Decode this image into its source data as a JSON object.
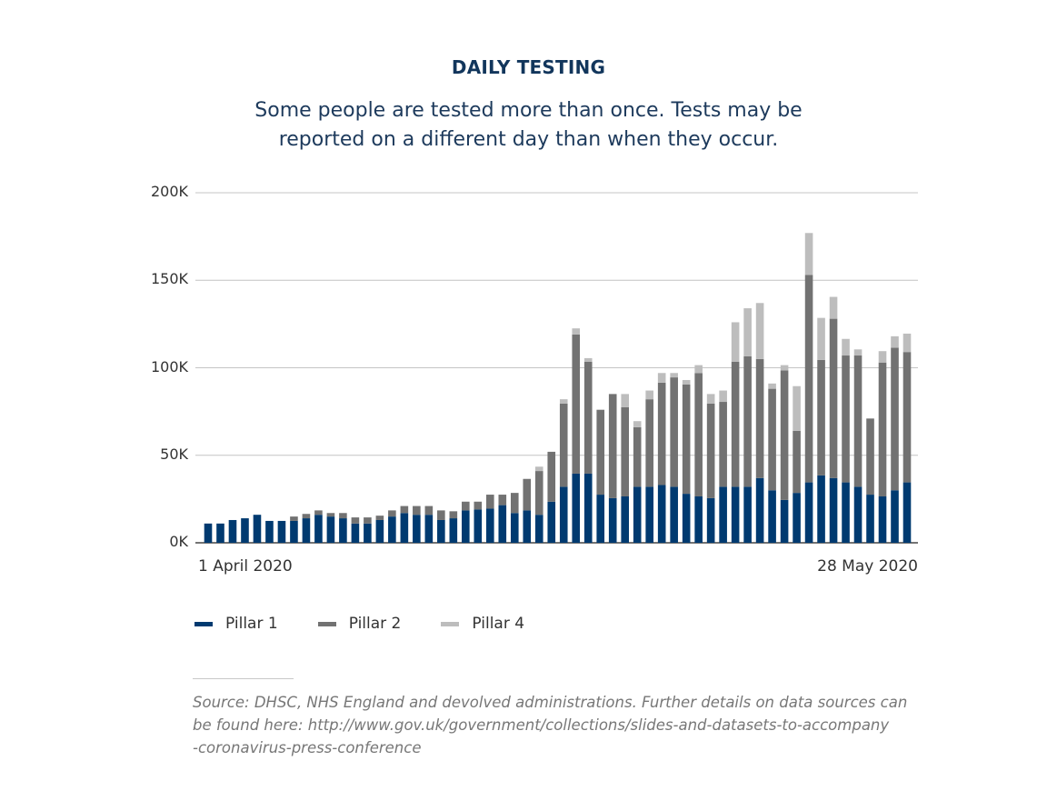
{
  "chart_data": {
    "type": "bar",
    "stacked": true,
    "title": "DAILY TESTING",
    "subtitle_lines": [
      "Some people are tested more than once. Tests may be",
      "reported on a different day than when they occur."
    ],
    "x_first_label": "1 April 2020",
    "x_last_label": "28 May 2020",
    "ylim": [
      0,
      200000
    ],
    "yticks": [
      0,
      50000,
      100000,
      150000,
      200000
    ],
    "ytick_labels": [
      "0K",
      "50K",
      "100K",
      "150K",
      "200K"
    ],
    "grid": true,
    "legend_position": "bottom-left",
    "categories_start": "1 April 2020",
    "categories_end": "28 May 2020",
    "series": [
      {
        "name": "Pillar 1",
        "color": "#003a70",
        "values": [
          11000,
          11000,
          13000,
          14000,
          16000,
          12500,
          12500,
          12500,
          14000,
          16000,
          15000,
          14000,
          11000,
          11000,
          13000,
          15000,
          17000,
          16000,
          16000,
          13000,
          14000,
          18500,
          19000,
          19500,
          21500,
          17000,
          18500,
          16000,
          23500,
          32000,
          39500,
          39500,
          27500,
          25500,
          26500,
          32000,
          32000,
          33000,
          32000,
          28000,
          26500,
          25500,
          32000,
          32000,
          32000,
          37000,
          30000,
          24500,
          28500,
          34500,
          38500,
          37000,
          34500,
          32000,
          27500,
          26500,
          30000,
          34500
        ]
      },
      {
        "name": "Pillar 2",
        "color": "#727272",
        "values": [
          0,
          0,
          0,
          0,
          0,
          0,
          0,
          2500,
          2500,
          2500,
          2000,
          3000,
          3500,
          3500,
          2500,
          3500,
          4000,
          5000,
          5000,
          5500,
          4000,
          5000,
          4500,
          8000,
          6000,
          11500,
          18000,
          25000,
          28500,
          47500,
          79500,
          64000,
          48500,
          59500,
          51000,
          34000,
          50000,
          58500,
          62500,
          62500,
          70500,
          54000,
          48500,
          71500,
          74500,
          68000,
          58000,
          74000,
          35500,
          118500,
          66000,
          91000,
          72500,
          75000,
          43500,
          76500,
          81500,
          74500
        ]
      },
      {
        "name": "Pillar 4",
        "color": "#bdbdbd",
        "values": [
          0,
          0,
          0,
          0,
          0,
          0,
          0,
          0,
          0,
          0,
          0,
          0,
          0,
          0,
          0,
          0,
          0,
          0,
          0,
          0,
          0,
          0,
          0,
          0,
          0,
          0,
          0,
          2500,
          0,
          2500,
          3500,
          2000,
          0,
          0,
          7500,
          3500,
          5000,
          5500,
          2500,
          2500,
          4500,
          5500,
          6500,
          22500,
          27500,
          32000,
          3000,
          3000,
          25500,
          24000,
          24000,
          12500,
          9500,
          3500,
          0,
          6500,
          6500,
          10500
        ]
      }
    ]
  },
  "source": {
    "lines": [
      "Source: DHSC, NHS England and devolved administrations. Further details on data sources can",
      "be found here: http://www.gov.uk/government/collections/slides-and-datasets-to-accompany",
      "-coronavirus-press-conference"
    ]
  }
}
